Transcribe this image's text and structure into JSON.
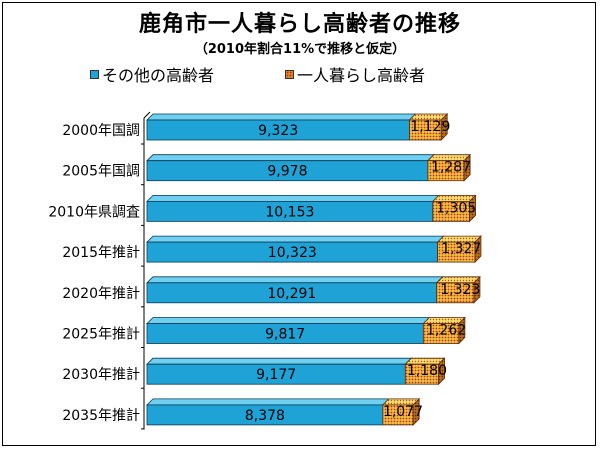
{
  "chart_data": {
    "type": "bar",
    "orientation": "horizontal",
    "stacked": true,
    "title": "鹿角市一人暮らし高齢者の推移",
    "subtitle": "（2010年割合11%で推移と仮定）",
    "legend_position": "top",
    "categories": [
      "2000年国調",
      "2005年国調",
      "2010年県調査",
      "2015年推計",
      "2020年推計",
      "2025年推計",
      "2030年推計",
      "2035年推計"
    ],
    "series": [
      {
        "name": "その他の高齢者",
        "color": "#1fa3d6",
        "values": [
          9323,
          9978,
          10153,
          10323,
          10291,
          9817,
          9177,
          8378
        ],
        "labels": [
          "9,323",
          "9,978",
          "10,153",
          "10,323",
          "10,291",
          "9,817",
          "9,177",
          "8,378"
        ]
      },
      {
        "name": "一人暮らし高齢者",
        "color": "#e0a030",
        "values": [
          1129,
          1287,
          1305,
          1327,
          1323,
          1262,
          1180,
          1077
        ],
        "labels": [
          "1,129",
          "1,287",
          "1,305",
          "1,327",
          "1,323",
          "1,262",
          "1,180",
          "1,077"
        ]
      }
    ],
    "xlim": [
      0,
      12000
    ],
    "grid": false
  }
}
